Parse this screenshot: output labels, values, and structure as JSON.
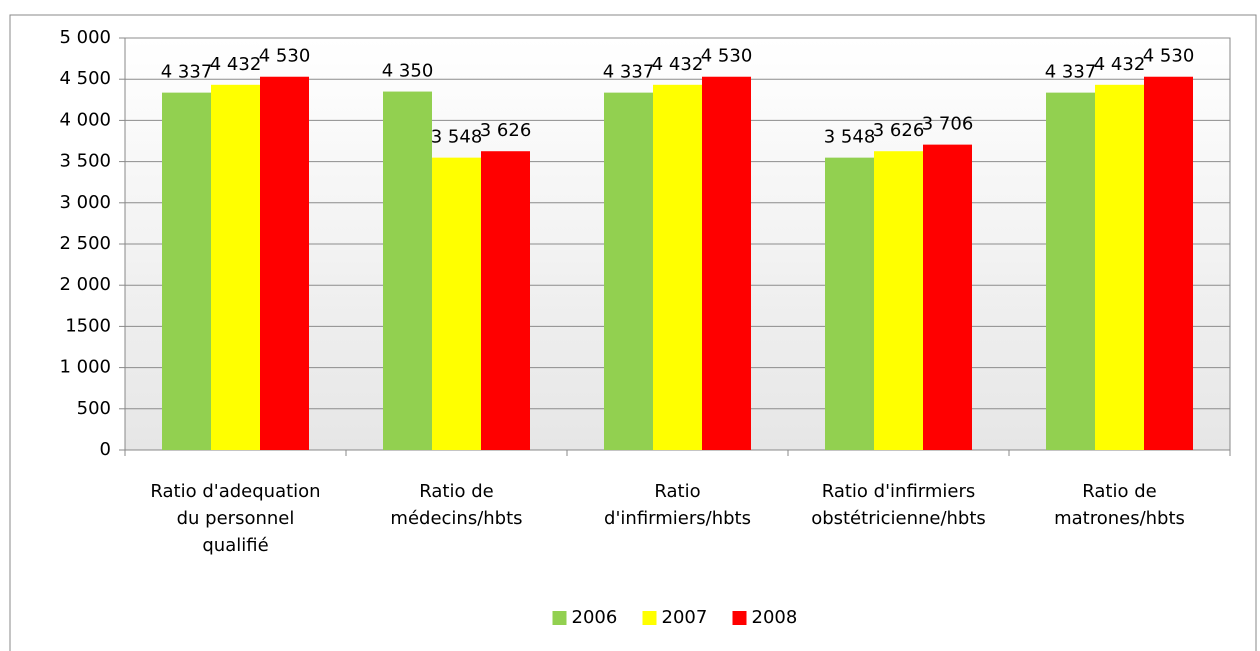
{
  "chart_data": {
    "type": "bar",
    "categories": [
      [
        "Ratio d'adequation",
        "du personnel",
        "qualifié"
      ],
      [
        "Ratio de",
        "médecins/hbts"
      ],
      [
        "Ratio",
        "d'infirmiers/hbts"
      ],
      [
        "Ratio d'infirmiers",
        "obstétricienne/hbts"
      ],
      [
        "Ratio de",
        "matrones/hbts"
      ]
    ],
    "series": [
      {
        "name": "2006",
        "color": "#92d050",
        "values": [
          4337,
          4350,
          4337,
          3548,
          4337
        ],
        "value_labels": [
          "4 337",
          "4 350",
          "4 337",
          "3 548",
          "4 337"
        ]
      },
      {
        "name": "2007",
        "color": "#ffff00",
        "values": [
          4432,
          3548,
          4432,
          3626,
          4432
        ],
        "value_labels": [
          "4 432",
          "3 548",
          "4 432",
          "3 626",
          "4 432"
        ]
      },
      {
        "name": "2008",
        "color": "#ff0000",
        "values": [
          4530,
          3626,
          4530,
          3706,
          4530
        ],
        "value_labels": [
          "4 530",
          "3 626",
          "4 530",
          "3 706",
          "4 530"
        ]
      }
    ],
    "ylim": [
      0,
      5000
    ],
    "yticks": [
      0,
      500,
      {
        "value": 1000,
        "label": "1 000"
      },
      1500,
      {
        "value": 2000,
        "label": "2 000"
      },
      {
        "value": 2500,
        "label": "2 500"
      },
      {
        "value": 3000,
        "label": "3 000"
      },
      {
        "value": 3500,
        "label": "3 500"
      },
      {
        "value": 4000,
        "label": "4 000"
      },
      {
        "value": 4500,
        "label": "4 500"
      },
      {
        "value": 5000,
        "label": "5 000"
      }
    ],
    "grid": true,
    "legend": "bottom"
  }
}
